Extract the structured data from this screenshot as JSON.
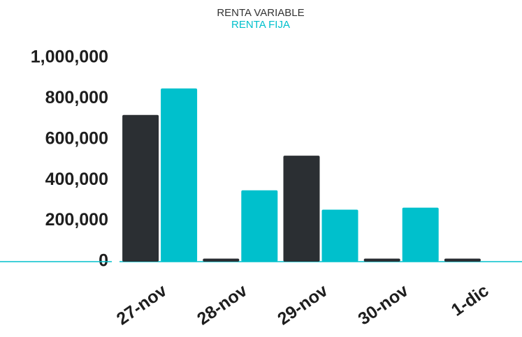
{
  "chart_data": {
    "type": "bar",
    "categories": [
      "27-nov",
      "28-nov",
      "29-nov",
      "30-nov",
      "1-dic"
    ],
    "series": [
      {
        "name": "RENTA VARIABLE",
        "color": "#2b2f33",
        "values": [
          720000,
          15000,
          520000,
          15000,
          15000
        ]
      },
      {
        "name": "RENTA FIJA",
        "color": "#00c0cc",
        "values": [
          850000,
          350000,
          255000,
          265000,
          0
        ]
      }
    ],
    "ylim": [
      0,
      1000000
    ],
    "yticks": [
      0,
      {
        "value": 200000,
        "label": "200,000"
      },
      {
        "value": 400000,
        "label": "400,000"
      },
      {
        "value": 600000,
        "label": "600,000"
      },
      {
        "value": 800000,
        "label": "800,000"
      },
      {
        "value": 1000000,
        "label": "1,000,000"
      }
    ],
    "grid": false
  }
}
